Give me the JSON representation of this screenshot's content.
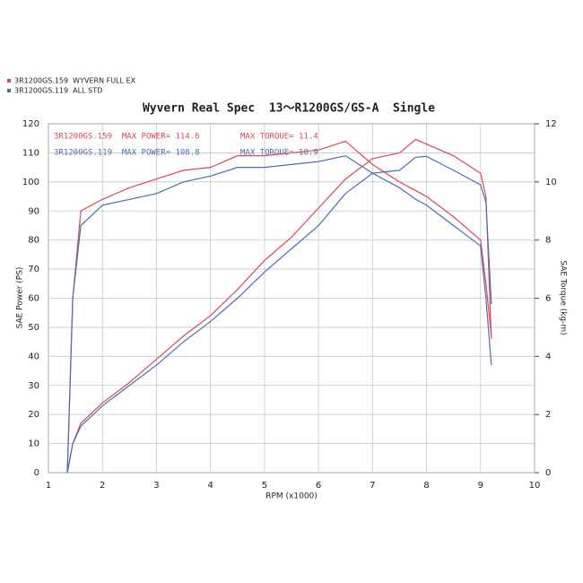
{
  "chart_data": {
    "type": "line",
    "title": "Wyvern Real Spec  13～R1200GS/GS-A  Single",
    "xlabel": "RPM (x1000)",
    "ylabel": "SAE Power (PS)",
    "y2label": "SAE Torque (kg-m)",
    "legend": [
      {
        "name": "3R1200GS.159  WYVERN FULL EX",
        "color": "#d9485a"
      },
      {
        "name": "3R1200GS.119  ALL STD",
        "color": "#4a6fb0"
      }
    ],
    "annotations": [
      {
        "text": "3R1200GS.159  MAX POWER= 114.6",
        "color": "#d9485a"
      },
      {
        "text": "MAX TORQUE= 11.4",
        "color": "#d9485a"
      },
      {
        "text": "3R1200GS.119  MAX POWER= 108.8",
        "color": "#4a6fb0"
      },
      {
        "text": "MAX TORQUE= 10.9",
        "color": "#4a6fb0"
      }
    ],
    "x": [
      1.35,
      1.45,
      1.6,
      2,
      2.5,
      3,
      3.5,
      4,
      4.5,
      5,
      5.5,
      6,
      6.5,
      7,
      7.5,
      7.8,
      8,
      8.5,
      9,
      9.1,
      9.2
    ],
    "series": [
      {
        "color": "#d9485a",
        "values": [
          0,
          10,
          17,
          24,
          31,
          39,
          47,
          54,
          63,
          73,
          81,
          91,
          101,
          108,
          110,
          114.6,
          113,
          109,
          103,
          95,
          46
        ]
      },
      {
        "color": "#4a6fb0",
        "values": [
          0,
          10,
          16,
          23,
          30,
          37,
          45,
          52,
          60,
          69,
          77,
          85,
          96,
          103,
          104,
          108.5,
          108.8,
          104,
          99,
          93,
          58
        ]
      },
      {
        "color": "#d9485a",
        "axis": "y2",
        "values": [
          0,
          6,
          9,
          9.4,
          9.8,
          10.1,
          10.4,
          10.5,
          10.9,
          10.9,
          11.0,
          11.1,
          11.4,
          10.6,
          10.0,
          9.7,
          9.5,
          8.8,
          8.0,
          6.5,
          4.7
        ]
      },
      {
        "color": "#4a6fb0",
        "axis": "y2",
        "values": [
          0,
          6,
          8.5,
          9.2,
          9.4,
          9.6,
          10.0,
          10.2,
          10.5,
          10.5,
          10.6,
          10.7,
          10.9,
          10.3,
          9.8,
          9.4,
          9.2,
          8.5,
          7.8,
          6.0,
          3.7
        ]
      }
    ],
    "xlim": [
      1,
      10
    ],
    "xticks": [
      1,
      2,
      3,
      4,
      5,
      6,
      7,
      8,
      9,
      10
    ],
    "ylim": [
      0,
      120
    ],
    "yticks": [
      0,
      10,
      20,
      30,
      40,
      50,
      60,
      70,
      80,
      90,
      100,
      110,
      120
    ],
    "y2lim": [
      0,
      12
    ],
    "y2ticks": [
      0,
      2,
      4,
      6,
      8,
      10,
      12
    ],
    "grid": true
  }
}
